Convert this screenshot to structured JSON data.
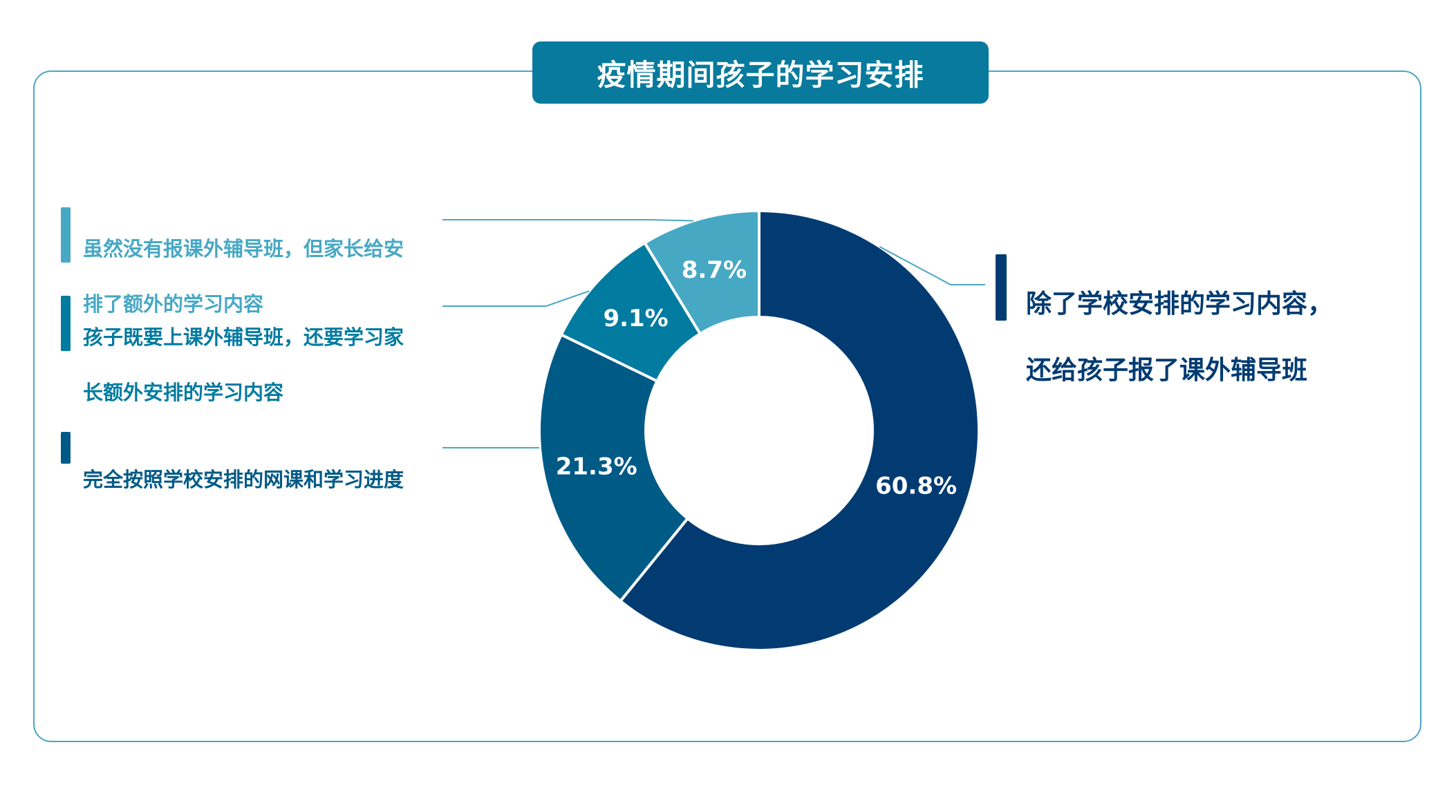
{
  "title": "疫情期间孩子的学习安排",
  "colors": {
    "frame": "#4aa6c4",
    "title_bg": "#077a9d",
    "leader_line": "#4aa6c4"
  },
  "chart_data": {
    "type": "pie",
    "donut": true,
    "title": "疫情期间孩子的学习安排",
    "slices": [
      {
        "label": "除了学校安排的学习内容，还给孩子报了课外辅导班",
        "value": 60.8,
        "display": "60.8%",
        "color": "#013b72"
      },
      {
        "label": "完全按照学校安排的网课和学习进度",
        "value": 21.3,
        "display": "21.3%",
        "color": "#005a86"
      },
      {
        "label": "孩子既要上课外辅导班，还要学习家长额外安排的学习内容",
        "value": 9.1,
        "display": "9.1%",
        "color": "#017ba0"
      },
      {
        "label": "虽然没有报课外辅导班，但家长给安排了额外的学习内容",
        "value": 8.7,
        "display": "8.7%",
        "color": "#47a8c4"
      }
    ]
  },
  "legend": {
    "right_item": {
      "line1": "除了学校安排的学习内容，",
      "line2": "还给孩子报了课外辅导班",
      "color": "#013b72"
    },
    "left_items": [
      {
        "line1": "虽然没有报课外辅导班，但家长给安",
        "line2": "排了额外的学习内容",
        "color": "#47a8c4"
      },
      {
        "line1": "孩子既要上课外辅导班，还要学习家",
        "line2": "长额外安排的学习内容",
        "color": "#017ba0"
      },
      {
        "line1": "完全按照学校安排的网课和学习进度",
        "line2": "",
        "color": "#005a86"
      }
    ]
  }
}
